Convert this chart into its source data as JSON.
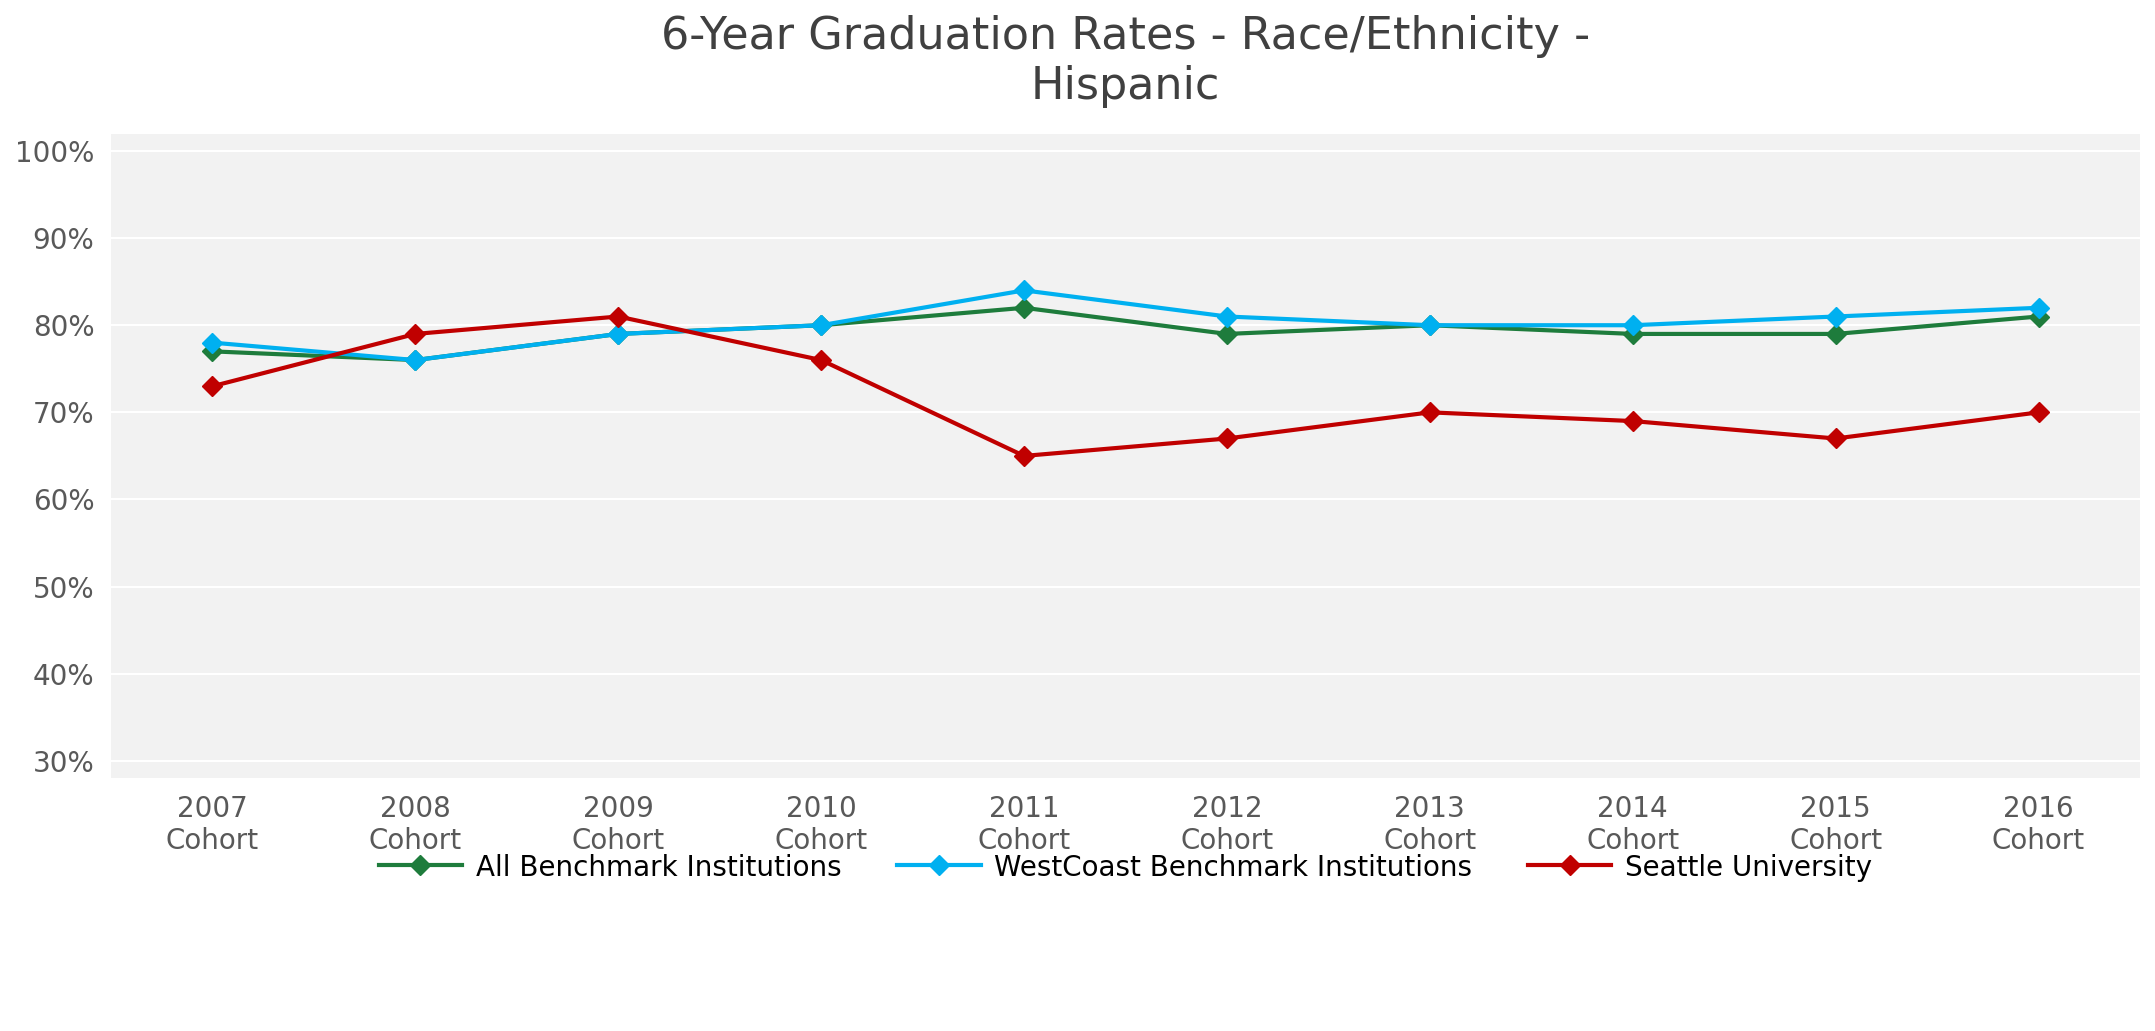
{
  "title": "6-Year Graduation Rates - Race/Ethnicity -\nHispanic",
  "cohorts": [
    "2007\nCohort",
    "2008\nCohort",
    "2009\nCohort",
    "2010\nCohort",
    "2011\nCohort",
    "2012\nCohort",
    "2013\nCohort",
    "2014\nCohort",
    "2015\nCohort",
    "2016\nCohort"
  ],
  "all_benchmark": [
    0.77,
    0.76,
    0.79,
    0.8,
    0.82,
    0.79,
    0.8,
    0.79,
    0.79,
    0.81
  ],
  "westcoast_benchmark": [
    0.78,
    0.76,
    0.79,
    0.8,
    0.84,
    0.81,
    0.8,
    0.8,
    0.81,
    0.82
  ],
  "seattle_university": [
    0.73,
    0.79,
    0.81,
    0.76,
    0.65,
    0.67,
    0.7,
    0.69,
    0.67,
    0.7
  ],
  "all_benchmark_color": "#1e7c3c",
  "westcoast_benchmark_color": "#00b0f0",
  "seattle_university_color": "#c00000",
  "ylim": [
    0.28,
    1.02
  ],
  "yticks": [
    0.3,
    0.4,
    0.5,
    0.6,
    0.7,
    0.8,
    0.9,
    1.0
  ],
  "ytick_labels": [
    "30%",
    "40%",
    "50%",
    "60%",
    "70%",
    "80%",
    "90%",
    "100%"
  ],
  "legend_labels": [
    "All Benchmark Institutions",
    "WestCoast Benchmark Institutions",
    "Seattle University"
  ],
  "title_fontsize": 32,
  "tick_fontsize": 20,
  "legend_fontsize": 20,
  "background_color": "#ffffff",
  "plot_bg_color": "#f2f2f2",
  "grid_color": "#ffffff",
  "line_width": 3.0,
  "marker_size": 10
}
